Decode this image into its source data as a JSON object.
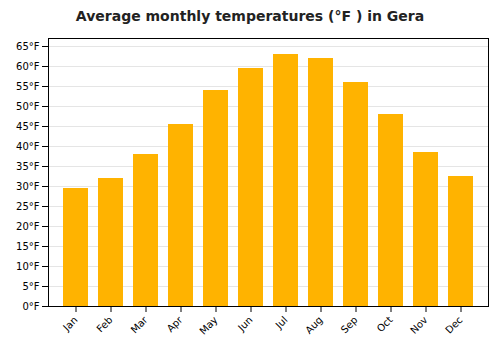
{
  "chart_data": {
    "type": "bar",
    "title": "Average monthly temperatures (°F ) in Gera",
    "categories": [
      "Jan",
      "Feb",
      "Mar",
      "Apr",
      "May",
      "Jun",
      "Jul",
      "Aug",
      "Sep",
      "Oct",
      "Nov",
      "Dec"
    ],
    "values": [
      29.5,
      32.0,
      38.0,
      45.5,
      54.0,
      59.5,
      63.0,
      62.0,
      56.0,
      48.0,
      38.5,
      32.5
    ],
    "color": "#FFB300",
    "ylim": [
      0,
      67
    ],
    "yticks": [
      {
        "value": 0,
        "label": "0°F"
      },
      {
        "value": 5,
        "label": "5°F"
      },
      {
        "value": 10,
        "label": "10°F"
      },
      {
        "value": 15,
        "label": "15°F"
      },
      {
        "value": 20,
        "label": "20°F"
      },
      {
        "value": 25,
        "label": "25°F"
      },
      {
        "value": 30,
        "label": "30°F"
      },
      {
        "value": 35,
        "label": "35°F"
      },
      {
        "value": 40,
        "label": "40°F"
      },
      {
        "value": 45,
        "label": "45°F"
      },
      {
        "value": 50,
        "label": "50°F"
      },
      {
        "value": 55,
        "label": "55°F"
      },
      {
        "value": 60,
        "label": "60°F"
      },
      {
        "value": 65,
        "label": "65°F"
      }
    ],
    "grid": true
  }
}
